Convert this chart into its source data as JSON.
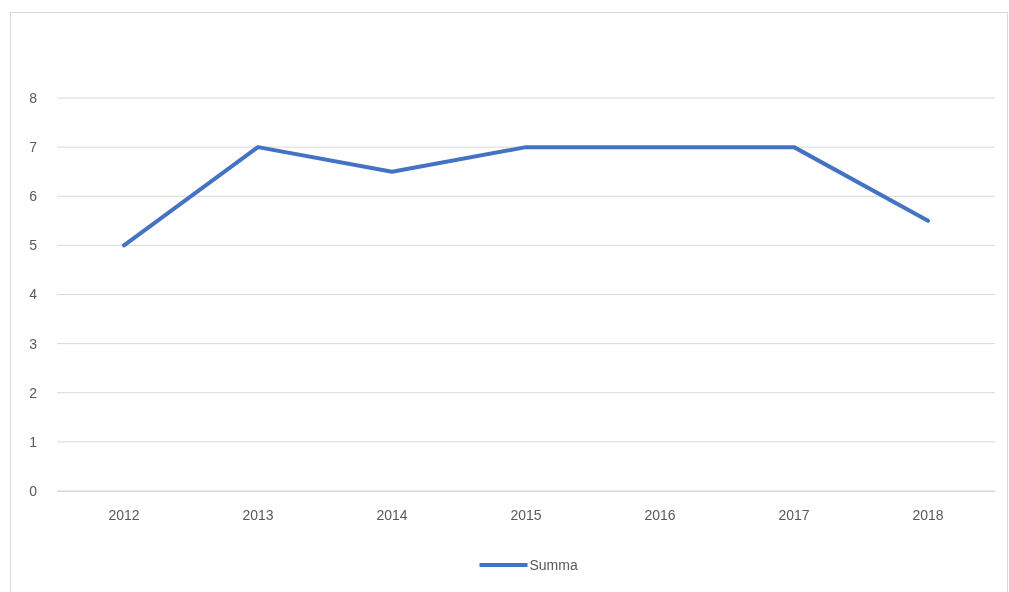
{
  "chart_data": {
    "type": "line",
    "categories": [
      "2012",
      "2013",
      "2014",
      "2015",
      "2016",
      "2017",
      "2018"
    ],
    "series": [
      {
        "name": "Summa",
        "color": "#4472c4",
        "values": [
          5,
          7,
          6.5,
          7,
          7,
          7,
          5.5
        ]
      }
    ],
    "ylim": [
      0,
      8
    ],
    "yticks": [
      0,
      1,
      2,
      3,
      4,
      5,
      6,
      7,
      8
    ],
    "grid": "y",
    "legend": "bottom",
    "marker": "none",
    "line_style": "solid"
  }
}
